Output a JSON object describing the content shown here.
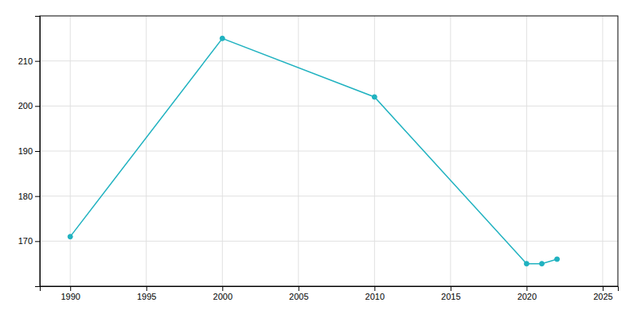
{
  "chart_data": {
    "type": "line",
    "x": [
      1990,
      2000,
      2010,
      2020,
      2021,
      2022
    ],
    "values": [
      171,
      215,
      202,
      165,
      165,
      166
    ],
    "color": "#20b2c0",
    "marker": "circle",
    "xlim": [
      1988,
      2026
    ],
    "ylim": [
      160,
      220
    ],
    "xticks": [
      1990,
      1995,
      2000,
      2005,
      2010,
      2015,
      2020,
      2025
    ],
    "yticks": [
      170,
      180,
      190,
      200,
      210
    ],
    "grid": true
  }
}
